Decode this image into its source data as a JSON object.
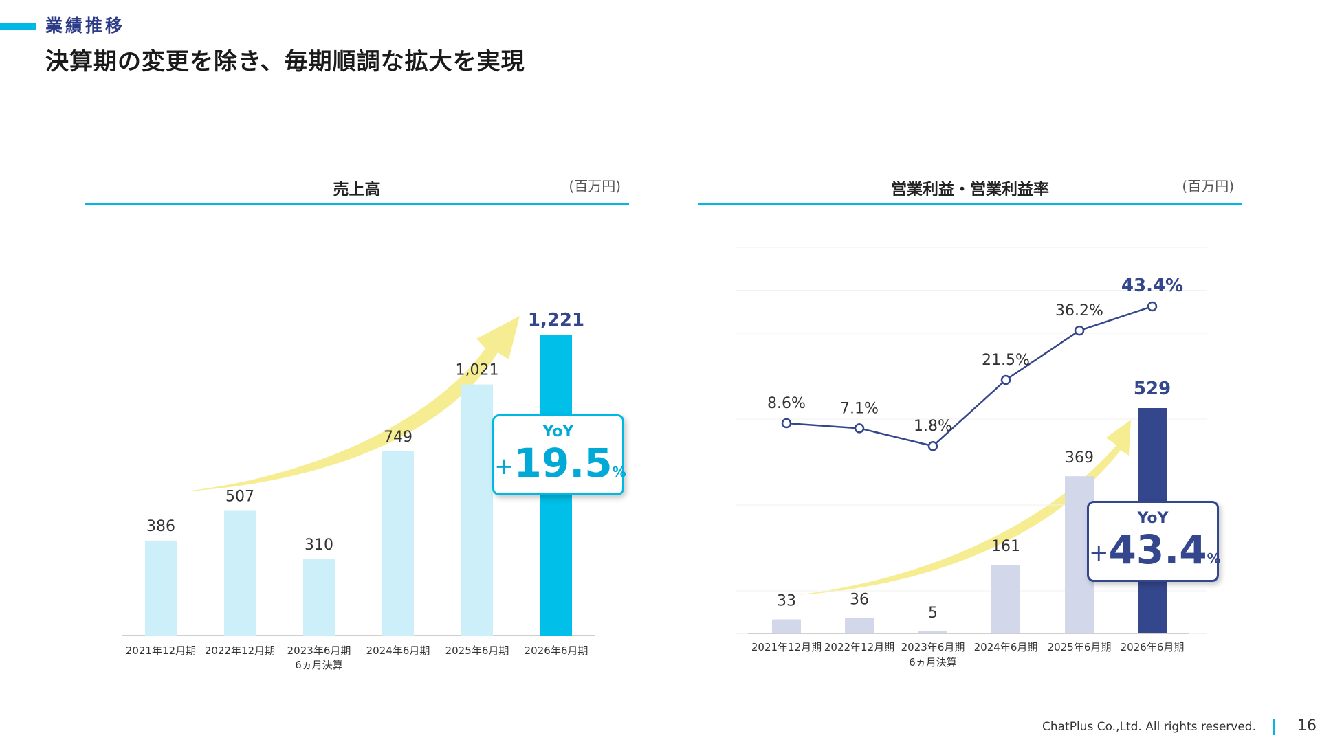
{
  "header": {
    "section_label": "業績推移",
    "headline": "決算期の変更を除き、毎期順調な拡大を実現"
  },
  "colors": {
    "accent": "#00b8e4",
    "navy": "#34468c",
    "light_blue_bar": "#cdeff9",
    "highlight_blue_bar": "#00bfe8",
    "light_navy_bar": "#d2d7ea",
    "arrow_yellow": "#f5ec8c"
  },
  "chart_data": [
    {
      "type": "bar",
      "title": "売上高",
      "unit": "(百万円)",
      "categories": [
        "2021年12月期",
        "2022年12月期",
        "2023年6月期",
        "2024年6月期",
        "2025年6月期",
        "2026年6月期"
      ],
      "category_notes": [
        "",
        "",
        "6ヵ月決算",
        "",
        "",
        ""
      ],
      "series": [
        {
          "values": [
            386,
            507,
            310,
            749,
            1021,
            1221
          ]
        }
      ],
      "value_labels": [
        "386",
        "507",
        "310",
        "749",
        "1,021",
        "1,221"
      ],
      "ylim": [
        0,
        1221
      ],
      "highlight_index": 5,
      "callout": {
        "label": "YoY",
        "sign": "+",
        "value": "19.5",
        "unit": "%"
      }
    },
    {
      "type": "bar+line",
      "title": "営業利益・営業利益率",
      "unit": "(百万円)",
      "categories": [
        "2021年12月期",
        "2022年12月期",
        "2023年6月期",
        "2024年6月期",
        "2025年6月期",
        "2026年6月期"
      ],
      "category_notes": [
        "",
        "",
        "6ヵ月決算",
        "",
        "",
        ""
      ],
      "series": [
        {
          "type": "bar",
          "values": [
            33,
            36,
            5,
            161,
            369,
            529
          ]
        },
        {
          "type": "line",
          "values": [
            8.6,
            7.1,
            1.8,
            21.5,
            36.2,
            43.4
          ]
        }
      ],
      "bar_labels": [
        "33",
        "36",
        "5",
        "161",
        "369",
        "529"
      ],
      "line_labels": [
        "8.6%",
        "7.1%",
        "1.8%",
        "21.5%",
        "36.2%",
        "43.4%"
      ],
      "ylim": [
        0,
        529
      ],
      "y2lim": [
        0,
        43.4
      ],
      "highlight_index": 5,
      "callout": {
        "label": "YoY",
        "sign": "+",
        "value": "43.4",
        "unit": "%"
      }
    }
  ],
  "footer": {
    "copyright": "ChatPlus Co.,Ltd. All rights reserved.",
    "page_number": "16"
  }
}
